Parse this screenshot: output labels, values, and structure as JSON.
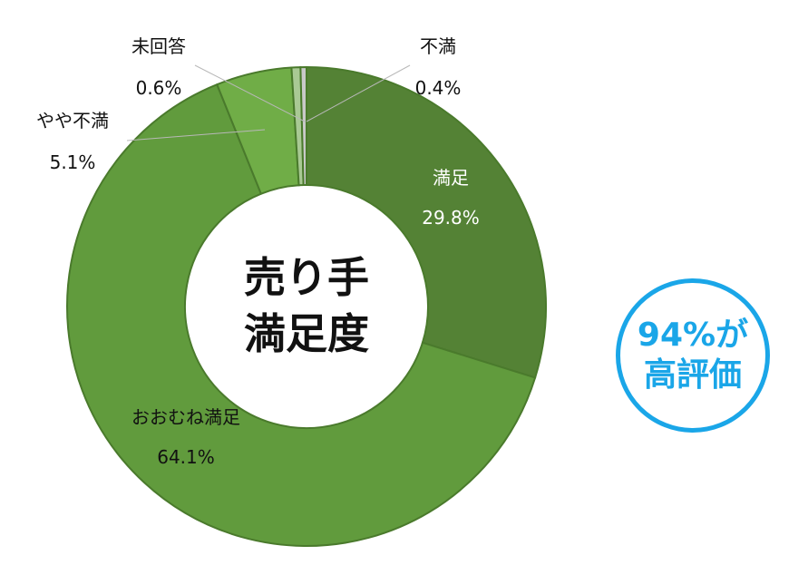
{
  "chart_data": {
    "type": "pie",
    "donut": true,
    "center_title": [
      "売り手",
      "満足度"
    ],
    "slices": [
      {
        "label": "満足",
        "value": 29.8,
        "value_label": "29.8%",
        "color": "#548235"
      },
      {
        "label": "おおむね満足",
        "value": 64.1,
        "value_label": "64.1%",
        "color": "#619b3d"
      },
      {
        "label": "やや不満",
        "value": 5.1,
        "value_label": "5.1%",
        "color": "#70ad47"
      },
      {
        "label": "未回答",
        "value": 0.6,
        "value_label": "0.6%",
        "color": "#a9c994"
      },
      {
        "label": "不満",
        "value": 0.4,
        "value_label": "0.4%",
        "color": "#c9c9c9"
      }
    ],
    "start_angle": "top",
    "direction": "clockwise"
  },
  "badge": {
    "line1": "94%が",
    "line2": "高評価",
    "color": "#1aa6e8"
  }
}
